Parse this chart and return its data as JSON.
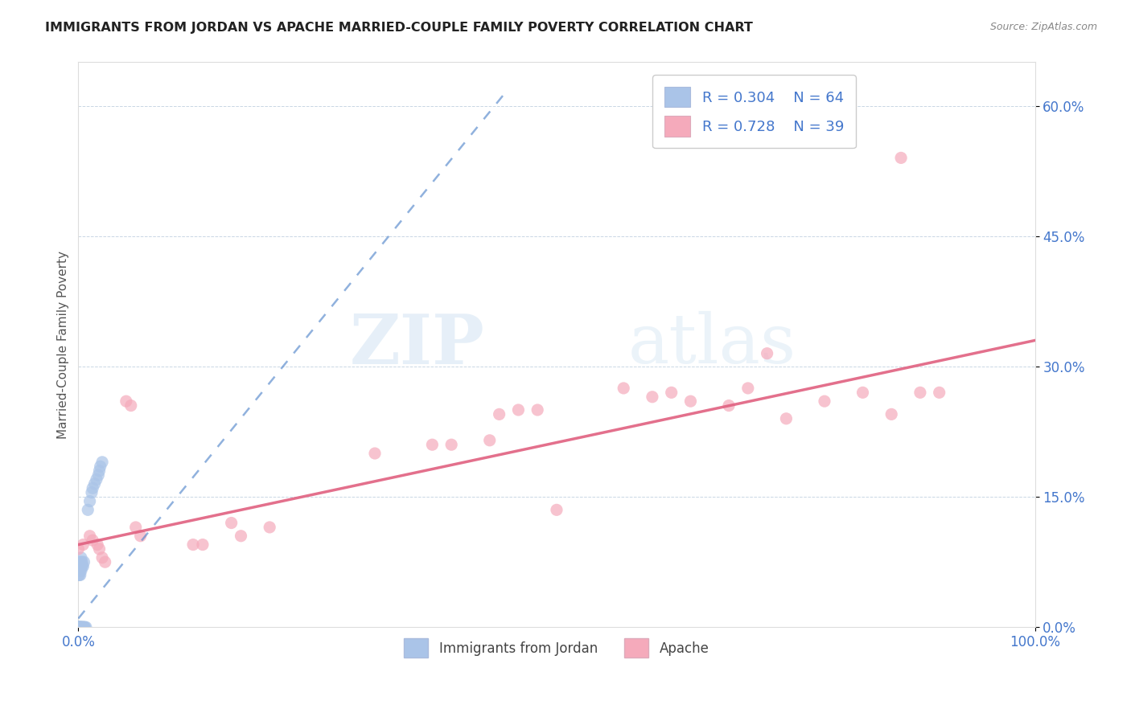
{
  "title": "IMMIGRANTS FROM JORDAN VS APACHE MARRIED-COUPLE FAMILY POVERTY CORRELATION CHART",
  "source": "Source: ZipAtlas.com",
  "ylabel": "Married-Couple Family Poverty",
  "legend_jordan": "Immigrants from Jordan",
  "legend_apache": "Apache",
  "legend_r_jordan": "R = 0.304",
  "legend_n_jordan": "N = 64",
  "legend_r_apache": "R = 0.728",
  "legend_n_apache": "N = 39",
  "jordan_color": "#aac4e8",
  "apache_color": "#f5aabb",
  "jordan_line_color": "#5588cc",
  "apache_line_color": "#e06080",
  "jordan_points": [
    [
      0.0,
      0.0
    ],
    [
      0.0,
      0.0
    ],
    [
      0.0,
      0.0
    ],
    [
      0.0,
      0.0
    ],
    [
      0.0,
      0.0
    ],
    [
      0.0,
      0.0
    ],
    [
      0.0,
      0.0
    ],
    [
      0.0,
      0.0
    ],
    [
      0.0,
      0.0
    ],
    [
      0.0,
      0.0
    ],
    [
      0.0,
      0.0
    ],
    [
      0.0,
      0.0
    ],
    [
      0.0,
      0.0
    ],
    [
      0.0,
      0.0
    ],
    [
      0.0,
      0.0
    ],
    [
      0.0,
      0.0
    ],
    [
      0.0,
      0.0
    ],
    [
      0.0,
      0.0
    ],
    [
      0.0,
      0.0
    ],
    [
      0.0,
      0.0
    ],
    [
      0.002,
      0.0
    ],
    [
      0.002,
      0.0
    ],
    [
      0.002,
      0.0
    ],
    [
      0.002,
      0.0
    ],
    [
      0.002,
      0.0
    ],
    [
      0.003,
      0.0
    ],
    [
      0.003,
      0.0
    ],
    [
      0.003,
      0.0
    ],
    [
      0.004,
      0.0
    ],
    [
      0.004,
      0.0
    ],
    [
      0.005,
      0.0
    ],
    [
      0.005,
      0.0
    ],
    [
      0.006,
      0.0
    ],
    [
      0.006,
      0.0
    ],
    [
      0.007,
      0.0
    ],
    [
      0.008,
      0.0
    ],
    [
      0.0,
      0.06
    ],
    [
      0.0,
      0.065
    ],
    [
      0.0,
      0.07
    ],
    [
      0.001,
      0.06
    ],
    [
      0.001,
      0.065
    ],
    [
      0.001,
      0.07
    ],
    [
      0.001,
      0.075
    ],
    [
      0.002,
      0.06
    ],
    [
      0.002,
      0.065
    ],
    [
      0.002,
      0.07
    ],
    [
      0.003,
      0.065
    ],
    [
      0.003,
      0.07
    ],
    [
      0.003,
      0.075
    ],
    [
      0.003,
      0.08
    ],
    [
      0.004,
      0.07
    ],
    [
      0.004,
      0.075
    ],
    [
      0.005,
      0.07
    ],
    [
      0.006,
      0.075
    ],
    [
      0.01,
      0.135
    ],
    [
      0.012,
      0.145
    ],
    [
      0.014,
      0.155
    ],
    [
      0.015,
      0.16
    ],
    [
      0.017,
      0.165
    ],
    [
      0.019,
      0.17
    ],
    [
      0.021,
      0.175
    ],
    [
      0.022,
      0.18
    ],
    [
      0.023,
      0.185
    ],
    [
      0.025,
      0.19
    ]
  ],
  "apache_points": [
    [
      0.0,
      0.09
    ],
    [
      0.005,
      0.095
    ],
    [
      0.012,
      0.105
    ],
    [
      0.015,
      0.1
    ],
    [
      0.02,
      0.095
    ],
    [
      0.022,
      0.09
    ],
    [
      0.025,
      0.08
    ],
    [
      0.028,
      0.075
    ],
    [
      0.05,
      0.26
    ],
    [
      0.055,
      0.255
    ],
    [
      0.06,
      0.115
    ],
    [
      0.065,
      0.105
    ],
    [
      0.12,
      0.095
    ],
    [
      0.13,
      0.095
    ],
    [
      0.16,
      0.12
    ],
    [
      0.17,
      0.105
    ],
    [
      0.2,
      0.115
    ],
    [
      0.31,
      0.2
    ],
    [
      0.37,
      0.21
    ],
    [
      0.39,
      0.21
    ],
    [
      0.43,
      0.215
    ],
    [
      0.44,
      0.245
    ],
    [
      0.46,
      0.25
    ],
    [
      0.48,
      0.25
    ],
    [
      0.5,
      0.135
    ],
    [
      0.57,
      0.275
    ],
    [
      0.6,
      0.265
    ],
    [
      0.62,
      0.27
    ],
    [
      0.64,
      0.26
    ],
    [
      0.68,
      0.255
    ],
    [
      0.7,
      0.275
    ],
    [
      0.72,
      0.315
    ],
    [
      0.74,
      0.24
    ],
    [
      0.78,
      0.26
    ],
    [
      0.82,
      0.27
    ],
    [
      0.85,
      0.245
    ],
    [
      0.86,
      0.54
    ],
    [
      0.88,
      0.27
    ],
    [
      0.9,
      0.27
    ]
  ],
  "xlim": [
    0.0,
    1.0
  ],
  "ylim": [
    0.0,
    0.65
  ],
  "yticks": [
    0.0,
    0.15,
    0.3,
    0.45,
    0.6
  ],
  "ytick_labels": [
    "0.0%",
    "15.0%",
    "30.0%",
    "45.0%",
    "60.0%"
  ],
  "jordan_line_x": [
    0.0,
    0.45
  ],
  "jordan_line_y": [
    0.01,
    0.62
  ],
  "apache_line_x": [
    0.0,
    1.0
  ],
  "apache_line_y": [
    0.095,
    0.33
  ],
  "watermark_zip": "ZIP",
  "watermark_atlas": "atlas"
}
